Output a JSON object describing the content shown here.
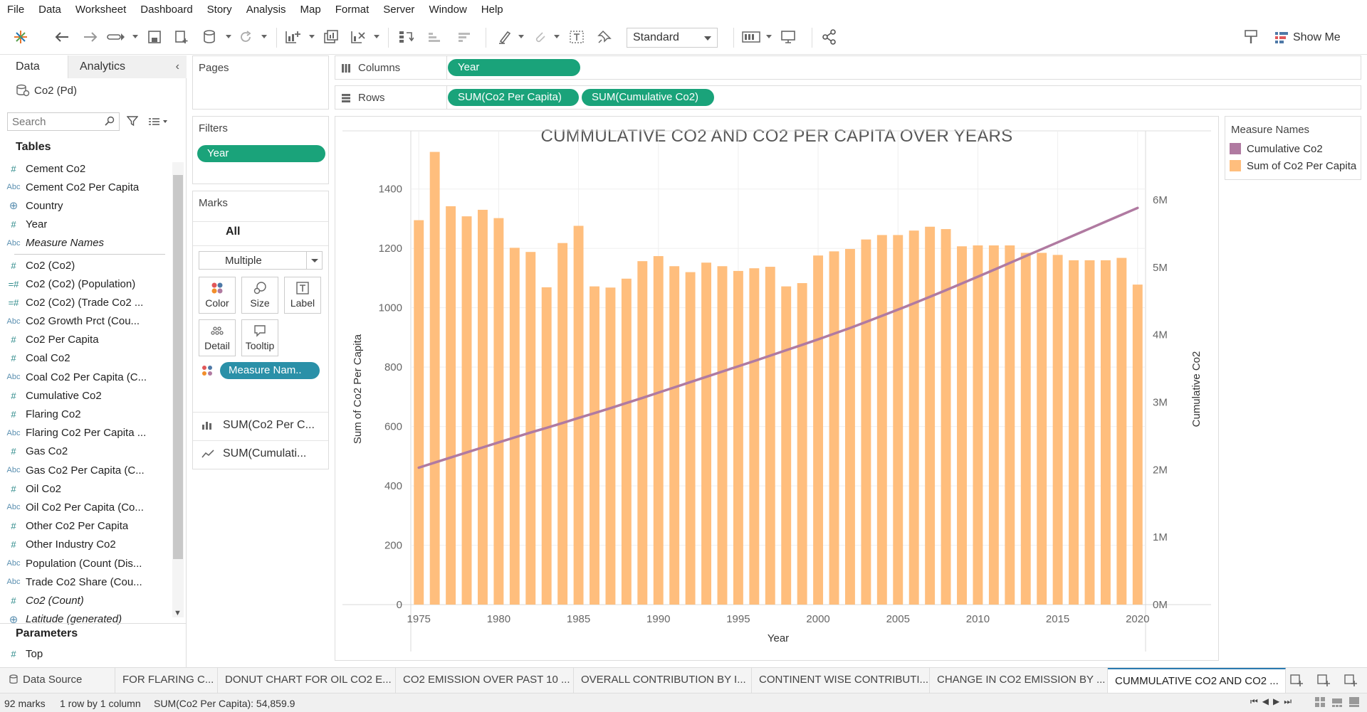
{
  "menu": [
    "File",
    "Data",
    "Worksheet",
    "Dashboard",
    "Story",
    "Analysis",
    "Map",
    "Format",
    "Server",
    "Window",
    "Help"
  ],
  "toolbar": {
    "fit": "Standard",
    "show_me": "Show Me"
  },
  "left": {
    "tab_data": "Data",
    "tab_analytics": "Analytics",
    "datasource": "Co2 (Pd)",
    "search_placeholder": "Search",
    "tables_header": "Tables",
    "fields": [
      {
        "type": "num",
        "name": "Cement Co2"
      },
      {
        "type": "abc",
        "name": "Cement Co2 Per Capita"
      },
      {
        "type": "geo",
        "name": "Country"
      },
      {
        "type": "num",
        "name": "Year"
      },
      {
        "type": "abc",
        "name": "Measure Names",
        "italic": true
      },
      {
        "type": "sep"
      },
      {
        "type": "num",
        "name": "Co2 (Co2)"
      },
      {
        "type": "calc",
        "name": "Co2 (Co2) (Population)"
      },
      {
        "type": "calc",
        "name": "Co2 (Co2) (Trade Co2 ..."
      },
      {
        "type": "abc",
        "name": "Co2 Growth Prct (Cou..."
      },
      {
        "type": "num",
        "name": "Co2 Per Capita"
      },
      {
        "type": "num",
        "name": "Coal Co2"
      },
      {
        "type": "abc",
        "name": "Coal Co2 Per Capita (C..."
      },
      {
        "type": "num",
        "name": "Cumulative Co2"
      },
      {
        "type": "num",
        "name": "Flaring Co2"
      },
      {
        "type": "abc",
        "name": "Flaring Co2 Per Capita ..."
      },
      {
        "type": "num",
        "name": "Gas Co2"
      },
      {
        "type": "abc",
        "name": "Gas Co2 Per Capita (C..."
      },
      {
        "type": "num",
        "name": "Oil Co2"
      },
      {
        "type": "abc",
        "name": "Oil Co2 Per Capita (Co..."
      },
      {
        "type": "num",
        "name": "Other Co2 Per Capita"
      },
      {
        "type": "num",
        "name": "Other Industry Co2"
      },
      {
        "type": "abc",
        "name": "Population (Count (Dis..."
      },
      {
        "type": "abc",
        "name": "Trade Co2 Share (Cou..."
      },
      {
        "type": "num",
        "name": "Co2 (Count)",
        "italic": true
      },
      {
        "type": "geo",
        "name": "Latitude (generated)",
        "italic": true
      }
    ],
    "params_header": "Parameters",
    "params": [
      {
        "type": "num",
        "name": "Top"
      }
    ]
  },
  "pages": {
    "title": "Pages"
  },
  "filters": {
    "title": "Filters",
    "pill": "Year"
  },
  "marks": {
    "title": "Marks",
    "all": "All",
    "mark_type": "Multiple",
    "buttons": [
      "Color",
      "Size",
      "Label",
      "Detail",
      "Tooltip"
    ],
    "color_pill": "Measure Nam..",
    "sub1": "SUM(Co2 Per C...",
    "sub2": "SUM(Cumulati..."
  },
  "shelves": {
    "columns_label": "Columns",
    "rows_label": "Rows",
    "columns_pill": "Year",
    "rows_pill1": "SUM(Co2 Per Capita)",
    "rows_pill2": "SUM(Cumulative Co2)"
  },
  "legend": {
    "title": "Measure Names",
    "items": [
      {
        "label": "Cumulative Co2",
        "color": "#b07aa1"
      },
      {
        "label": "Sum of Co2 Per Capita",
        "color": "#ffbe7d"
      }
    ]
  },
  "chart_data": {
    "type": "bar",
    "title": "CUMMULATIVE CO2 AND CO2 PER CAPITA OVER YEARS",
    "xlabel": "Year",
    "ylabel": "Sum of Co2 Per Capita",
    "y2label": "Cumulative Co2",
    "x": [
      1975,
      1976,
      1977,
      1978,
      1979,
      1980,
      1981,
      1982,
      1983,
      1984,
      1985,
      1986,
      1987,
      1988,
      1989,
      1990,
      1991,
      1992,
      1993,
      1994,
      1995,
      1996,
      1997,
      1998,
      1999,
      2000,
      2001,
      2002,
      2003,
      2004,
      2005,
      2006,
      2007,
      2008,
      2009,
      2010,
      2011,
      2012,
      2013,
      2014,
      2015,
      2016,
      2017,
      2018,
      2019,
      2020
    ],
    "xticks": [
      1975,
      1980,
      1985,
      1990,
      1995,
      2000,
      2005,
      2010,
      2015,
      2020
    ],
    "ylim": [
      0,
      1500
    ],
    "yticks": [
      0,
      200,
      400,
      600,
      800,
      1000,
      1200,
      1400
    ],
    "y2lim": [
      0,
      6600000
    ],
    "y2ticks": [
      0,
      1000000,
      2000000,
      3000000,
      4000000,
      5000000,
      6000000
    ],
    "y2ticklabels": [
      "0M",
      "1M",
      "2M",
      "3M",
      "4M",
      "5M",
      "6M"
    ],
    "grid": true,
    "series": [
      {
        "name": "Sum of Co2 Per Capita",
        "type": "bar",
        "axis": "left",
        "color": "#ffbe7d",
        "values": [
          1295,
          1525,
          1342,
          1308,
          1330,
          1302,
          1202,
          1188,
          1069,
          1218,
          1276,
          1072,
          1068,
          1098,
          1157,
          1174,
          1140,
          1120,
          1152,
          1140,
          1124,
          1133,
          1138,
          1072,
          1083,
          1176,
          1190,
          1198,
          1230,
          1245,
          1245,
          1260,
          1273,
          1265,
          1207,
          1210,
          1210,
          1210,
          1185,
          1185,
          1178,
          1160,
          1160,
          1160,
          1168,
          1078
        ]
      },
      {
        "name": "Cumulative Co2",
        "type": "line",
        "axis": "right",
        "color": "#b07aa1",
        "values": [
          2030000,
          2105000,
          2180000,
          2255000,
          2330000,
          2405000,
          2478000,
          2550000,
          2620000,
          2692000,
          2766000,
          2838000,
          2912000,
          2988000,
          3064000,
          3142000,
          3220000,
          3298000,
          3376000,
          3454000,
          3532000,
          3610000,
          3690000,
          3770000,
          3850000,
          3932000,
          4016000,
          4100000,
          4190000,
          4280000,
          4372000,
          4466000,
          4562000,
          4660000,
          4760000,
          4860000,
          4962000,
          5064000,
          5166000,
          5268000,
          5370000,
          5472000,
          5574000,
          5676000,
          5778000,
          5880000
        ]
      }
    ]
  },
  "sheets": [
    {
      "label": "Data Source",
      "active": false
    },
    {
      "label": "FOR FLARING C...",
      "active": false
    },
    {
      "label": "DONUT CHART FOR OIL CO2 E...",
      "active": false
    },
    {
      "label": "CO2 EMISSION OVER PAST 10 ...",
      "active": false
    },
    {
      "label": "OVERALL CONTRIBUTION BY I...",
      "active": false
    },
    {
      "label": "CONTINENT WISE CONTRIBUTI...",
      "active": false
    },
    {
      "label": "CHANGE IN CO2 EMISSION BY ...",
      "active": false
    },
    {
      "label": "CUMMULATIVE CO2 AND CO2 ...",
      "active": true
    }
  ],
  "status": {
    "marks": "92 marks",
    "dims": "1 row by 1 column",
    "sum": "SUM(Co2 Per Capita): 54,859.9"
  }
}
